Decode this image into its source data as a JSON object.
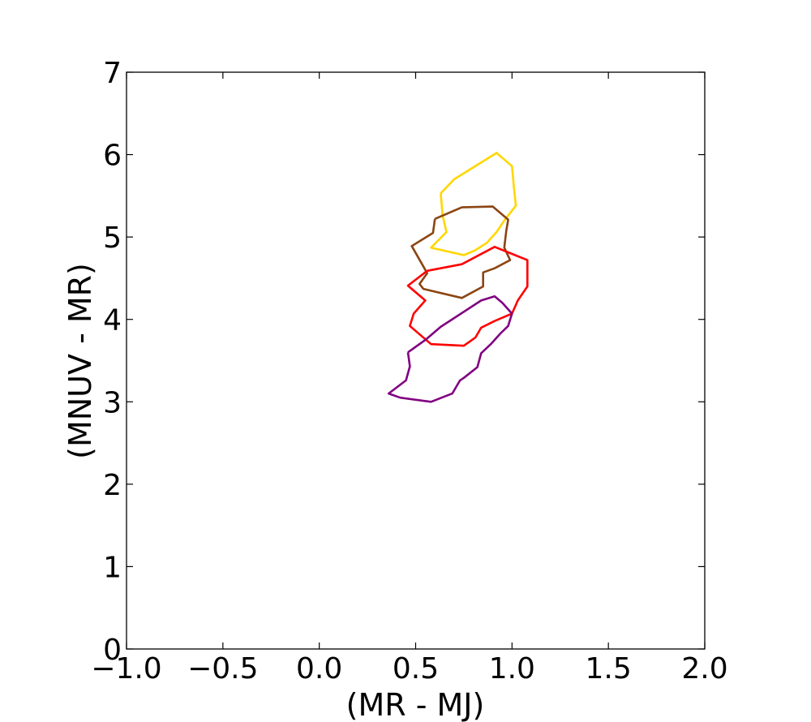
{
  "chart_data": {
    "type": "line",
    "title": "",
    "xlabel": "(MR - MJ)",
    "ylabel": "(MNUV - MR)",
    "xlim": [
      -1.0,
      2.0
    ],
    "ylim": [
      0,
      7
    ],
    "grid": false,
    "x_ticks": [
      -1.0,
      -0.5,
      0.0,
      0.5,
      1.0,
      1.5,
      2.0
    ],
    "x_tick_labels": [
      "−1.0",
      "−0.5",
      "0.0",
      "0.5",
      "1.0",
      "1.5",
      "2.0"
    ],
    "y_ticks": [
      0,
      1,
      2,
      3,
      4,
      5,
      6,
      7
    ],
    "y_tick_labels": [
      "0",
      "1",
      "2",
      "3",
      "4",
      "5",
      "6",
      "7"
    ],
    "series": [
      {
        "color": "#ffd700",
        "points": [
          [
            0.63,
            5.53
          ],
          [
            0.7,
            5.7
          ],
          [
            0.92,
            6.02
          ],
          [
            1.0,
            5.86
          ],
          [
            1.01,
            5.6
          ],
          [
            1.02,
            5.38
          ],
          [
            0.96,
            5.2
          ],
          [
            0.92,
            5.06
          ],
          [
            0.87,
            4.93
          ],
          [
            0.81,
            4.84
          ],
          [
            0.75,
            4.78
          ],
          [
            0.58,
            4.87
          ],
          [
            0.66,
            5.06
          ],
          [
            0.64,
            5.26
          ],
          [
            0.63,
            5.53
          ]
        ]
      },
      {
        "color": "#8b4513",
        "points": [
          [
            0.6,
            5.22
          ],
          [
            0.74,
            5.36
          ],
          [
            0.9,
            5.37
          ],
          [
            0.98,
            5.21
          ],
          [
            0.97,
            5.07
          ],
          [
            0.96,
            4.87
          ],
          [
            0.99,
            4.72
          ],
          [
            0.91,
            4.62
          ],
          [
            0.85,
            4.57
          ],
          [
            0.85,
            4.4
          ],
          [
            0.74,
            4.26
          ],
          [
            0.54,
            4.37
          ],
          [
            0.52,
            4.43
          ],
          [
            0.56,
            4.56
          ],
          [
            0.48,
            4.89
          ],
          [
            0.59,
            5.05
          ],
          [
            0.6,
            5.22
          ]
        ]
      },
      {
        "color": "#ff0000",
        "points": [
          [
            0.56,
            4.59
          ],
          [
            0.74,
            4.67
          ],
          [
            0.91,
            4.88
          ],
          [
            1.08,
            4.72
          ],
          [
            1.08,
            4.4
          ],
          [
            1.03,
            4.23
          ],
          [
            1.0,
            4.07
          ],
          [
            0.91,
            3.98
          ],
          [
            0.84,
            3.9
          ],
          [
            0.81,
            3.78
          ],
          [
            0.75,
            3.68
          ],
          [
            0.58,
            3.7
          ],
          [
            0.47,
            3.92
          ],
          [
            0.49,
            4.07
          ],
          [
            0.55,
            4.23
          ],
          [
            0.46,
            4.41
          ],
          [
            0.56,
            4.59
          ]
        ]
      },
      {
        "color": "#800080",
        "points": [
          [
            0.46,
            3.6
          ],
          [
            0.55,
            3.75
          ],
          [
            0.63,
            3.91
          ],
          [
            0.84,
            4.23
          ],
          [
            0.91,
            4.28
          ],
          [
            0.95,
            4.2
          ],
          [
            1.0,
            4.07
          ],
          [
            0.98,
            3.92
          ],
          [
            0.94,
            3.83
          ],
          [
            0.89,
            3.7
          ],
          [
            0.84,
            3.59
          ],
          [
            0.82,
            3.42
          ],
          [
            0.75,
            3.29
          ],
          [
            0.73,
            3.26
          ],
          [
            0.69,
            3.1
          ],
          [
            0.58,
            3.0
          ],
          [
            0.42,
            3.05
          ],
          [
            0.36,
            3.1
          ],
          [
            0.45,
            3.26
          ],
          [
            0.47,
            3.43
          ],
          [
            0.46,
            3.6
          ]
        ]
      }
    ]
  }
}
